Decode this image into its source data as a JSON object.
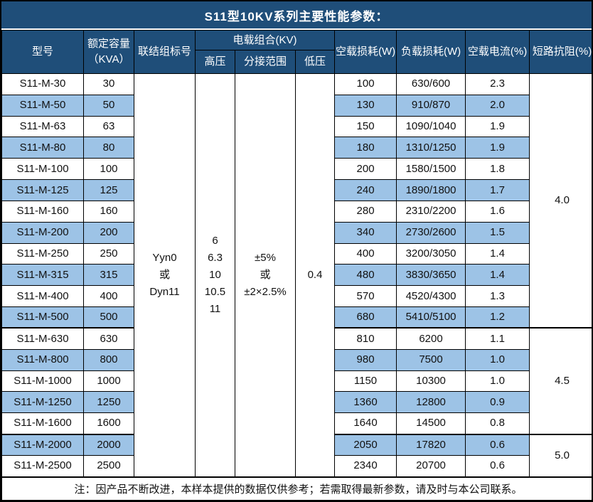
{
  "title": "S11型10KV系列主要性能参数：",
  "colors": {
    "header_bg": "#1F4E79",
    "alt_row_bg": "#9DC3E6",
    "border": "#000000",
    "header_text": "#FFFFFF",
    "body_text": "#111111"
  },
  "table": {
    "headers": {
      "model": "型号",
      "capacity": "额定容量\n（KVA）",
      "connection": "联结组标号",
      "voltage_group": "电载组合(KV)",
      "hv": "高压",
      "tap_range": "分接范围",
      "lv": "低压",
      "no_load_loss": "空载损耗(W)",
      "load_loss": "负载损耗(W)",
      "no_load_current": "空载电流(%)",
      "impedance": "短路抗阻(%)"
    },
    "merged": {
      "connection": "Yyn0\n或\nDyn11",
      "hv": "6\n6.3\n10\n10.5\n11",
      "tap_range": "±5%\n或\n±2×2.5%",
      "lv": "0.4"
    },
    "rows": [
      {
        "model": "S11-M-30",
        "capacity": "30",
        "no_load_loss": "100",
        "load_loss": "630/600",
        "no_load_current": "2.3"
      },
      {
        "model": "S11-M-50",
        "capacity": "50",
        "no_load_loss": "130",
        "load_loss": "910/870",
        "no_load_current": "2.0"
      },
      {
        "model": "S11-M-63",
        "capacity": "63",
        "no_load_loss": "150",
        "load_loss": "1090/1040",
        "no_load_current": "1.9"
      },
      {
        "model": "S11-M-80",
        "capacity": "80",
        "no_load_loss": "180",
        "load_loss": "1310/1250",
        "no_load_current": "1.9"
      },
      {
        "model": "S11-M-100",
        "capacity": "100",
        "no_load_loss": "200",
        "load_loss": "1580/1500",
        "no_load_current": "1.8"
      },
      {
        "model": "S11-M-125",
        "capacity": "125",
        "no_load_loss": "240",
        "load_loss": "1890/1800",
        "no_load_current": "1.7"
      },
      {
        "model": "S11-M-160",
        "capacity": "160",
        "no_load_loss": "280",
        "load_loss": "2310/2200",
        "no_load_current": "1.6"
      },
      {
        "model": "S11-M-200",
        "capacity": "200",
        "no_load_loss": "340",
        "load_loss": "2730/2600",
        "no_load_current": "1.5"
      },
      {
        "model": "S11-M-250",
        "capacity": "250",
        "no_load_loss": "400",
        "load_loss": "3200/3050",
        "no_load_current": "1.4"
      },
      {
        "model": "S11-M-315",
        "capacity": "315",
        "no_load_loss": "480",
        "load_loss": "3830/3650",
        "no_load_current": "1.4"
      },
      {
        "model": "S11-M-400",
        "capacity": "400",
        "no_load_loss": "570",
        "load_loss": "4520/4300",
        "no_load_current": "1.3"
      },
      {
        "model": "S11-M-500",
        "capacity": "500",
        "no_load_loss": "680",
        "load_loss": "5410/5100",
        "no_load_current": "1.2"
      },
      {
        "model": "S11-M-630",
        "capacity": "630",
        "no_load_loss": "810",
        "load_loss": "6200",
        "no_load_current": "1.1"
      },
      {
        "model": "S11-M-800",
        "capacity": "800",
        "no_load_loss": "980",
        "load_loss": "7500",
        "no_load_current": "1.0"
      },
      {
        "model": "S11-M-1000",
        "capacity": "1000",
        "no_load_loss": "1150",
        "load_loss": "10300",
        "no_load_current": "1.0"
      },
      {
        "model": "S11-M-1250",
        "capacity": "1250",
        "no_load_loss": "1360",
        "load_loss": "12800",
        "no_load_current": "0.9"
      },
      {
        "model": "S11-M-1600",
        "capacity": "1600",
        "no_load_loss": "1640",
        "load_loss": "14500",
        "no_load_current": "0.8"
      },
      {
        "model": "S11-M-2000",
        "capacity": "2000",
        "no_load_loss": "2050",
        "load_loss": "17820",
        "no_load_current": "0.6"
      },
      {
        "model": "S11-M-2500",
        "capacity": "2500",
        "no_load_loss": "2340",
        "load_loss": "20700",
        "no_load_current": "0.6"
      }
    ],
    "impedance_groups": [
      {
        "value": "4.0",
        "start": 0,
        "span": 12
      },
      {
        "value": "4.5",
        "start": 12,
        "span": 5
      },
      {
        "value": "5.0",
        "start": 17,
        "span": 2
      }
    ]
  },
  "footer_note": "注：因产品不断改进，本样本提供的数据仅供参考；若需取得最新参数，请及时与本公司联系。"
}
